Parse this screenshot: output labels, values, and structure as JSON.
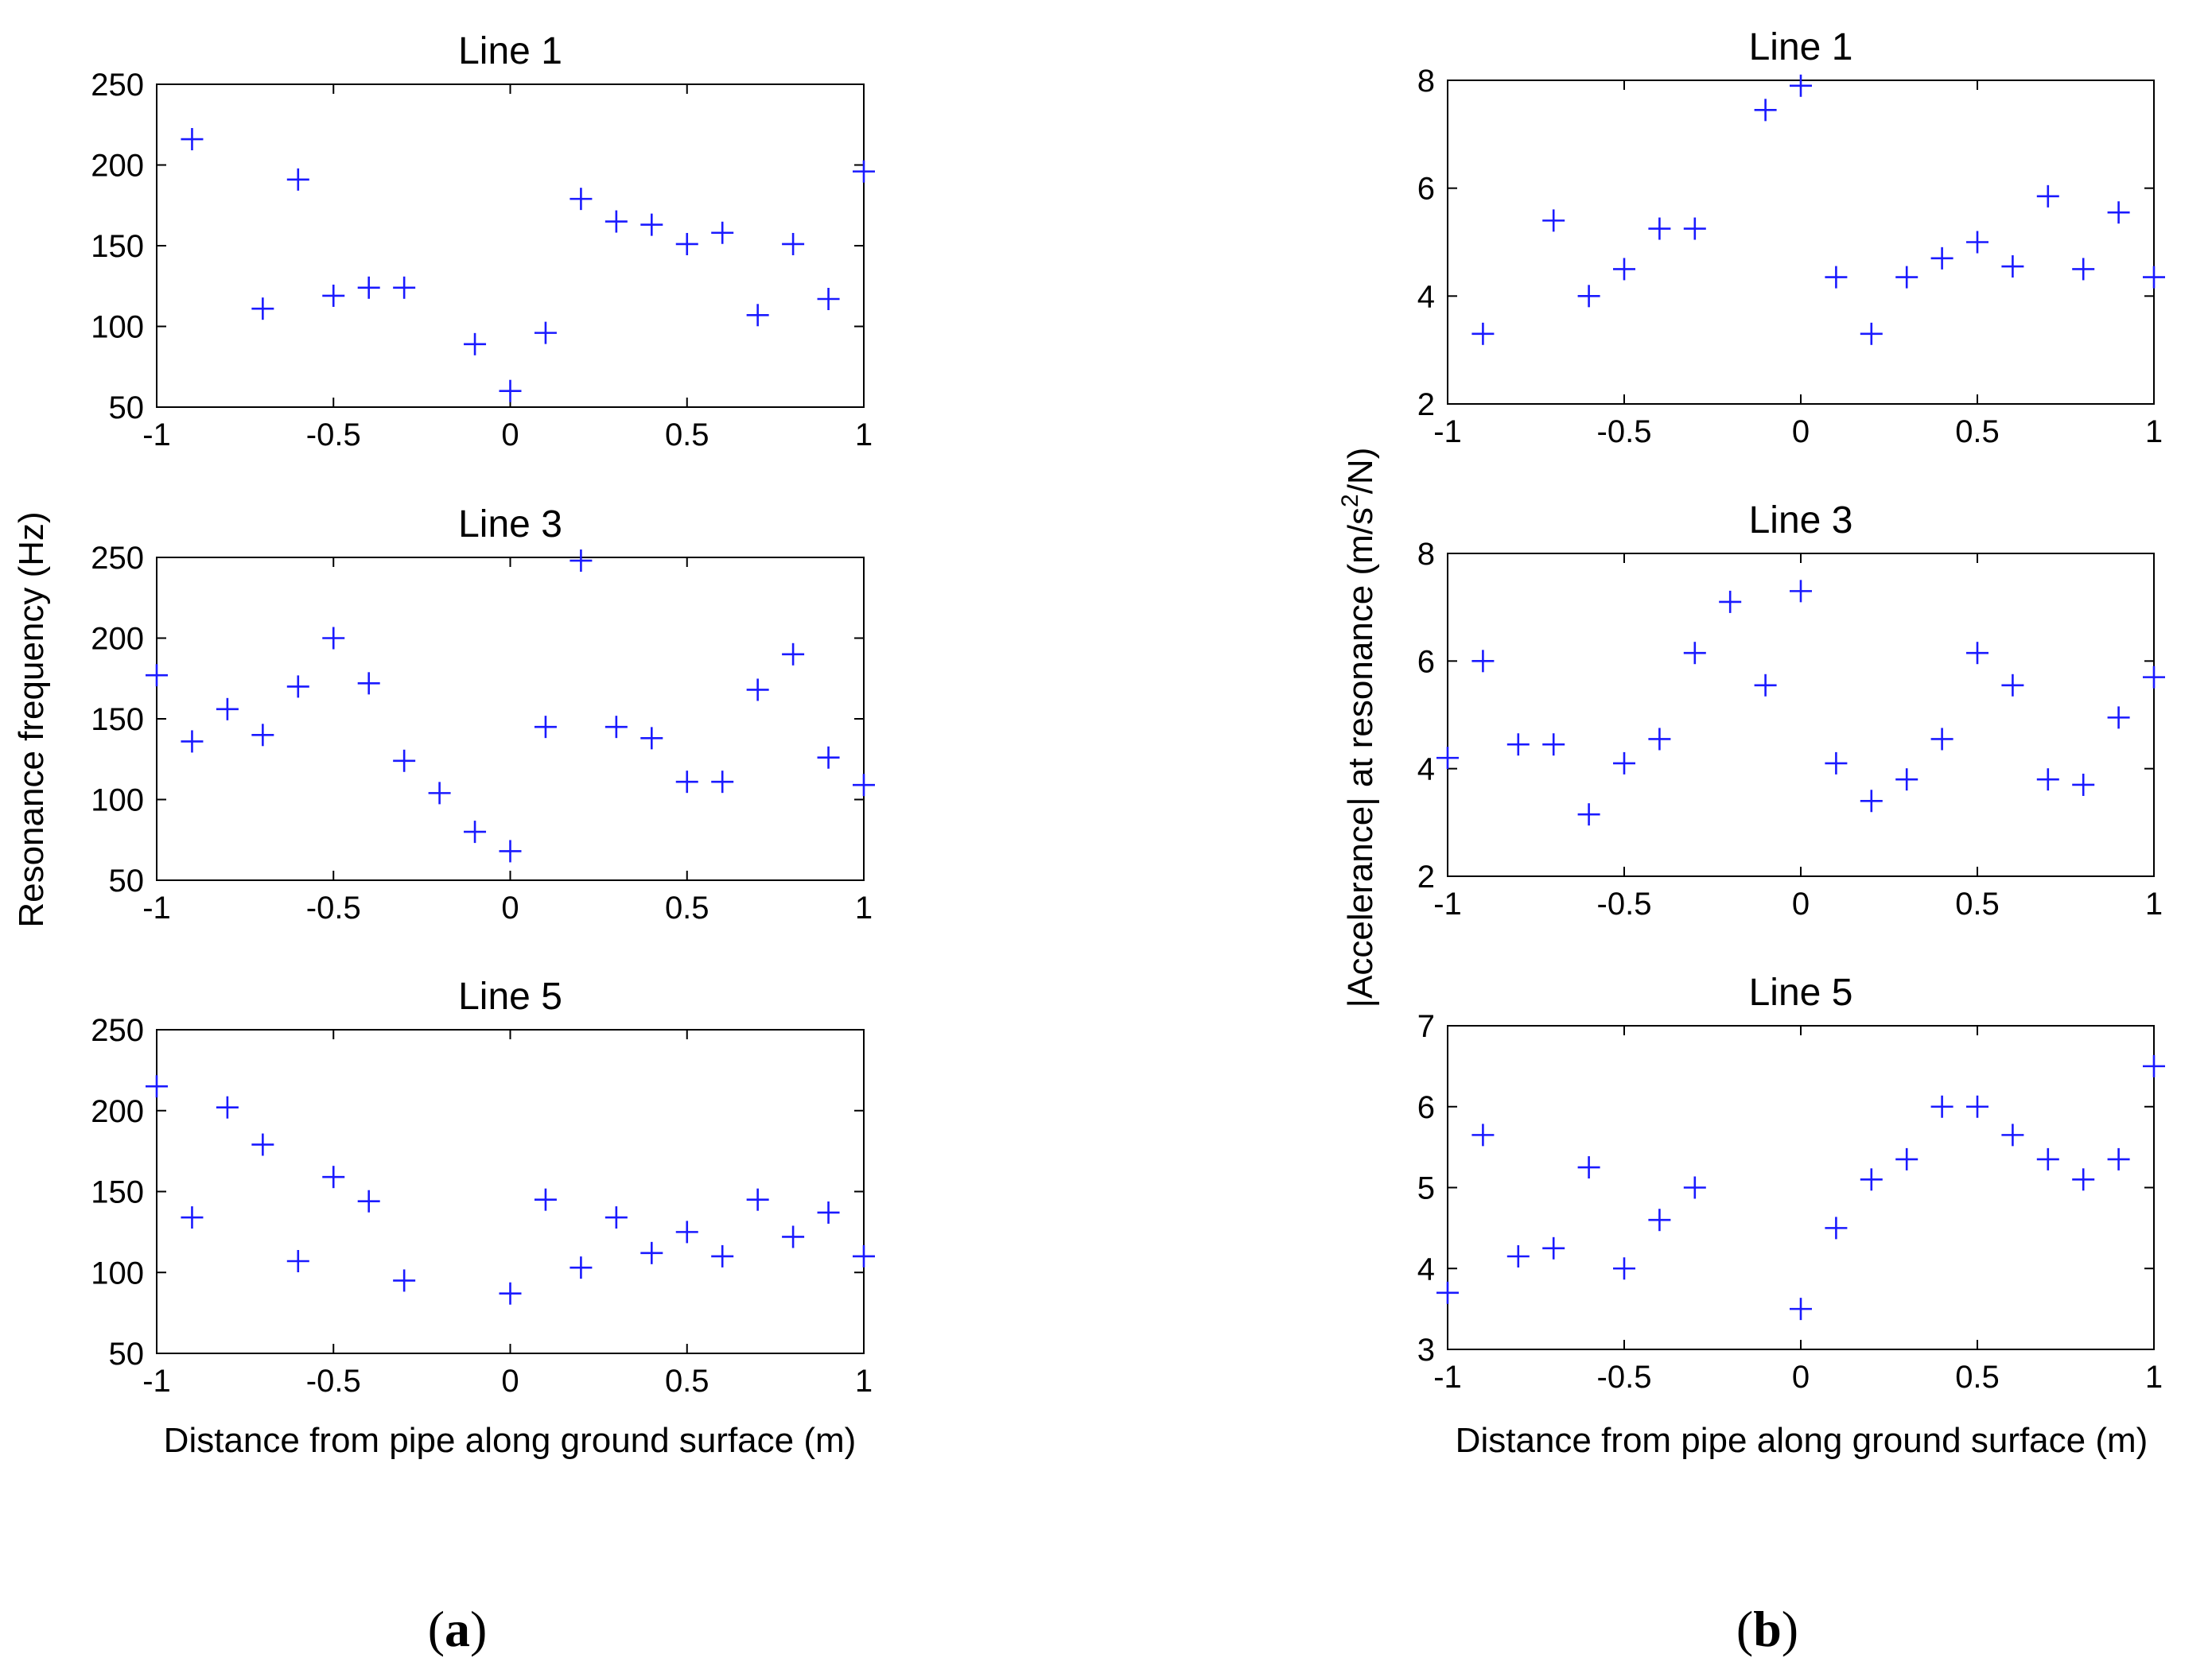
{
  "panels": [
    {
      "label_open": "(",
      "label_letter": "a",
      "label_close": ")",
      "xlabel": "Distance from pipe along ground surface (m)",
      "ylabel": "Resonance frequency (Hz)",
      "ylabel_sup": ""
    },
    {
      "label_open": "(",
      "label_letter": "b",
      "label_close": ")",
      "xlabel": "Distance from pipe along ground surface (m)",
      "ylabel": "|Accelerance| at resonance (m/s2/N)",
      "ylabel_pre": "|Accelerance| at resonance (m/s",
      "ylabel_sup": "2",
      "ylabel_post": "/N)"
    }
  ],
  "marker": {
    "symbol": "+",
    "color": "#1a1aff"
  },
  "chart_data": [
    {
      "type": "scatter",
      "panel": "a",
      "title": "Line 1",
      "xlim": [
        -1,
        1
      ],
      "ylim": [
        50,
        250
      ],
      "xticks": [
        -1,
        -0.5,
        0,
        0.5,
        1
      ],
      "xtick_labels": [
        "-1",
        "-0.5",
        "0",
        "0.5",
        "1"
      ],
      "yticks": [
        50,
        100,
        150,
        200,
        250
      ],
      "ytick_labels": [
        "50",
        "100",
        "150",
        "200",
        "250"
      ],
      "x": [
        -0.9,
        -0.7,
        -0.6,
        -0.5,
        -0.4,
        -0.3,
        -0.1,
        0,
        0.1,
        0.2,
        0.3,
        0.4,
        0.5,
        0.6,
        0.7,
        0.8,
        0.9,
        1.0
      ],
      "y": [
        216,
        111,
        191,
        119,
        124,
        124,
        89,
        60,
        96,
        179,
        165,
        163,
        151,
        158,
        107,
        151,
        117,
        196
      ]
    },
    {
      "type": "scatter",
      "panel": "a",
      "title": "Line 3",
      "xlim": [
        -1,
        1
      ],
      "ylim": [
        50,
        250
      ],
      "xticks": [
        -1,
        -0.5,
        0,
        0.5,
        1
      ],
      "xtick_labels": [
        "-1",
        "-0.5",
        "0",
        "0.5",
        "1"
      ],
      "yticks": [
        50,
        100,
        150,
        200,
        250
      ],
      "ytick_labels": [
        "50",
        "100",
        "150",
        "200",
        "250"
      ],
      "x": [
        -1.0,
        -0.9,
        -0.8,
        -0.7,
        -0.6,
        -0.5,
        -0.4,
        -0.3,
        -0.2,
        -0.1,
        0,
        0.1,
        0.2,
        0.3,
        0.4,
        0.5,
        0.6,
        0.7,
        0.8,
        0.9,
        1.0
      ],
      "y": [
        177,
        136,
        156,
        140,
        170,
        200,
        172,
        124,
        104,
        80,
        68,
        145,
        248,
        145,
        138,
        111,
        111,
        168,
        190,
        126,
        109
      ]
    },
    {
      "type": "scatter",
      "panel": "a",
      "title": "Line 5",
      "xlim": [
        -1,
        1
      ],
      "ylim": [
        50,
        250
      ],
      "xticks": [
        -1,
        -0.5,
        0,
        0.5,
        1
      ],
      "xtick_labels": [
        "-1",
        "-0.5",
        "0",
        "0.5",
        "1"
      ],
      "yticks": [
        50,
        100,
        150,
        200,
        250
      ],
      "ytick_labels": [
        "50",
        "100",
        "150",
        "200",
        "250"
      ],
      "x": [
        -1.0,
        -0.9,
        -0.8,
        -0.7,
        -0.6,
        -0.5,
        -0.4,
        -0.3,
        0,
        0.1,
        0.2,
        0.3,
        0.4,
        0.5,
        0.6,
        0.7,
        0.8,
        0.9,
        1.0
      ],
      "y": [
        215,
        134,
        202,
        179,
        107,
        159,
        144,
        95,
        87,
        145,
        103,
        134,
        112,
        125,
        110,
        145,
        122,
        137,
        110
      ]
    },
    {
      "type": "scatter",
      "panel": "b",
      "title": "Line 1",
      "xlim": [
        -1,
        1
      ],
      "ylim": [
        2,
        8
      ],
      "xticks": [
        -1,
        -0.5,
        0,
        0.5,
        1
      ],
      "xtick_labels": [
        "-1",
        "-0.5",
        "0",
        "0.5",
        "1"
      ],
      "yticks": [
        2,
        4,
        6,
        8
      ],
      "ytick_labels": [
        "2",
        "4",
        "6",
        "8"
      ],
      "x": [
        -0.9,
        -0.7,
        -0.6,
        -0.5,
        -0.4,
        -0.3,
        -0.1,
        0,
        0.1,
        0.2,
        0.3,
        0.4,
        0.5,
        0.6,
        0.7,
        0.8,
        0.9,
        1.0
      ],
      "y": [
        3.3,
        5.4,
        4.0,
        4.5,
        5.25,
        5.25,
        7.45,
        7.9,
        4.35,
        3.3,
        4.35,
        4.7,
        5.0,
        4.55,
        5.85,
        4.5,
        5.55,
        4.35
      ]
    },
    {
      "type": "scatter",
      "panel": "b",
      "title": "Line 3",
      "xlim": [
        -1,
        1
      ],
      "ylim": [
        2,
        8
      ],
      "xticks": [
        -1,
        -0.5,
        0,
        0.5,
        1
      ],
      "xtick_labels": [
        "-1",
        "-0.5",
        "0",
        "0.5",
        "1"
      ],
      "yticks": [
        2,
        4,
        6,
        8
      ],
      "ytick_labels": [
        "2",
        "4",
        "6",
        "8"
      ],
      "x": [
        -1.0,
        -0.9,
        -0.8,
        -0.7,
        -0.6,
        -0.5,
        -0.4,
        -0.3,
        -0.2,
        -0.1,
        0,
        0.1,
        0.2,
        0.3,
        0.4,
        0.5,
        0.6,
        0.7,
        0.8,
        0.9,
        1.0
      ],
      "y": [
        4.2,
        6.0,
        4.45,
        4.45,
        3.15,
        4.1,
        4.55,
        6.15,
        7.1,
        5.55,
        7.3,
        4.1,
        3.4,
        3.8,
        4.55,
        6.15,
        5.55,
        3.8,
        3.7,
        4.95,
        5.7
      ]
    },
    {
      "type": "scatter",
      "panel": "b",
      "title": "Line 5",
      "xlim": [
        -1,
        1
      ],
      "ylim": [
        3,
        7
      ],
      "xticks": [
        -1,
        -0.5,
        0,
        0.5,
        1
      ],
      "xtick_labels": [
        "-1",
        "-0.5",
        "0",
        "0.5",
        "1"
      ],
      "yticks": [
        3,
        4,
        5,
        6,
        7
      ],
      "ytick_labels": [
        "3",
        "4",
        "5",
        "6",
        "7"
      ],
      "x": [
        -1.0,
        -0.9,
        -0.8,
        -0.7,
        -0.6,
        -0.5,
        -0.4,
        -0.3,
        0,
        0.1,
        0.2,
        0.3,
        0.4,
        0.5,
        0.6,
        0.7,
        0.8,
        0.9,
        1.0
      ],
      "y": [
        3.7,
        5.65,
        4.15,
        4.25,
        5.25,
        4.0,
        4.6,
        5.0,
        3.5,
        4.5,
        5.1,
        5.35,
        6.0,
        6.0,
        5.65,
        5.35,
        5.1,
        5.35,
        6.5
      ]
    }
  ]
}
